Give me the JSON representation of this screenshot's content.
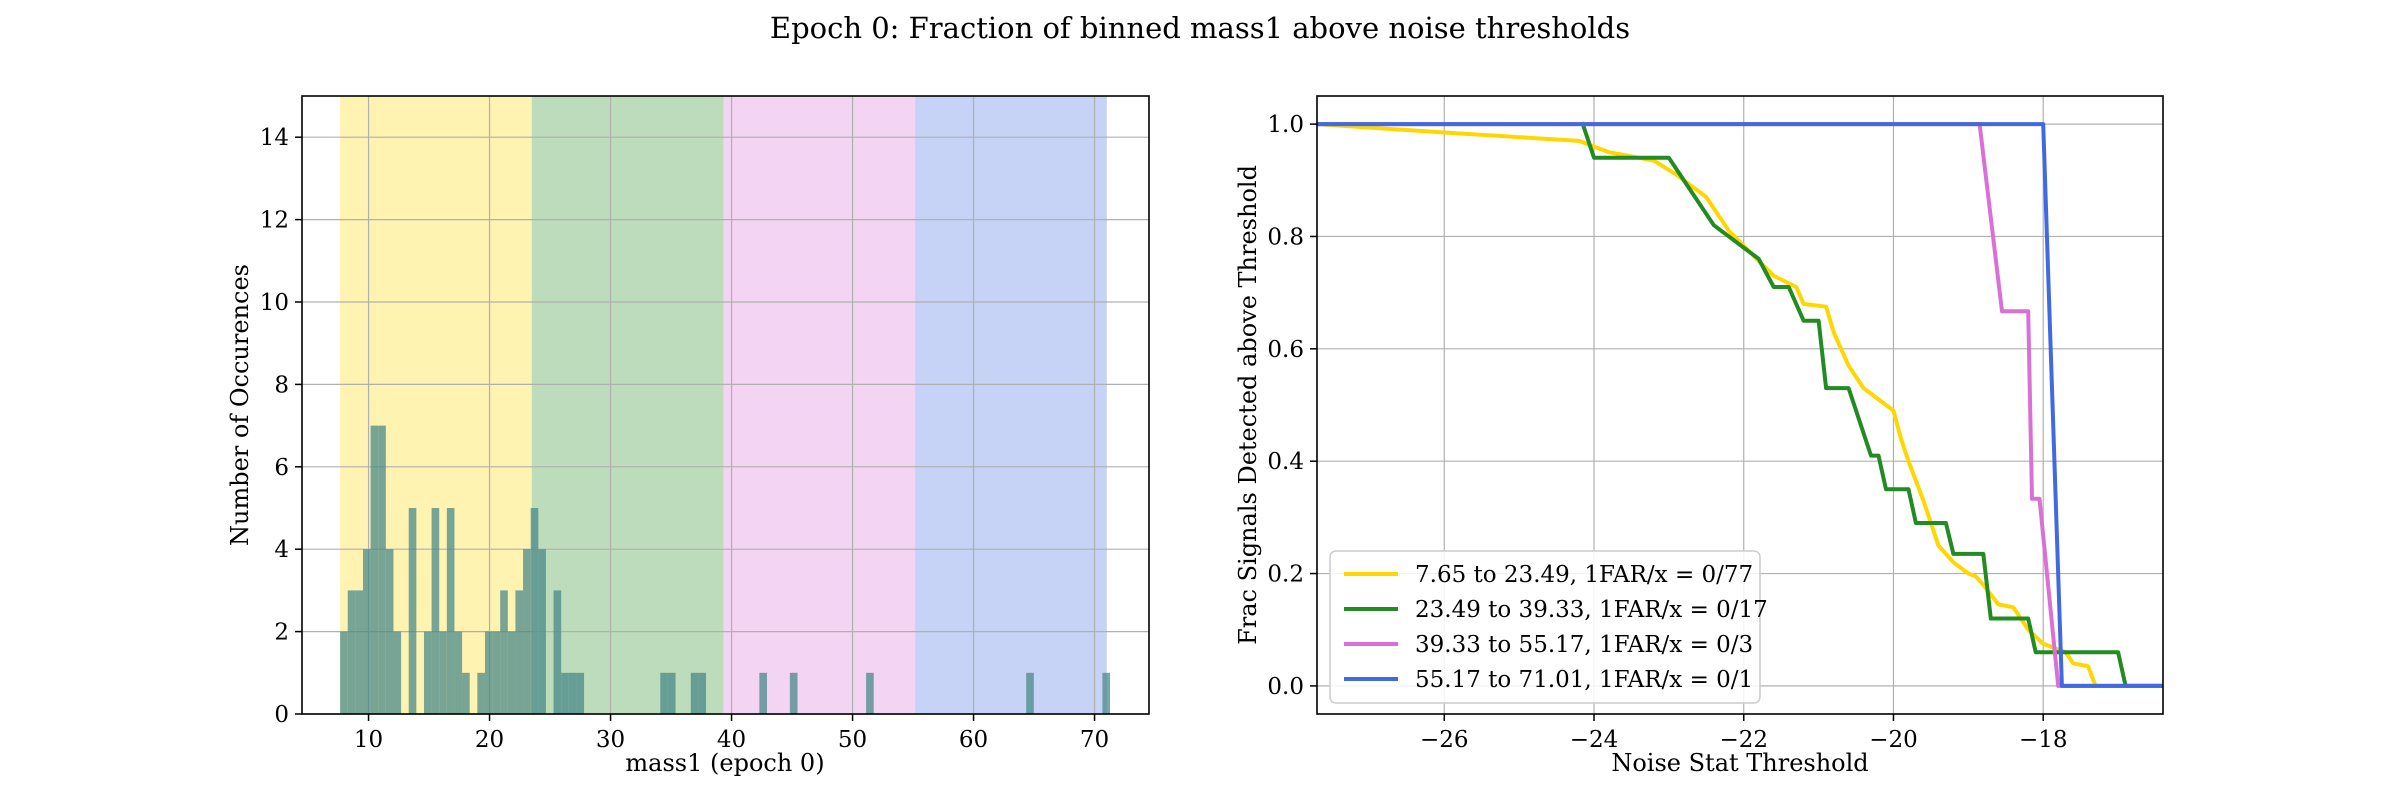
{
  "figure": {
    "suptitle": "Epoch 0: Fraction of binned mass1 above noise thresholds"
  },
  "colors": {
    "bin1": "#ffd700",
    "bin2": "#228b22",
    "bin3": "#da70d6",
    "bin4": "#4169e1",
    "bar": "#4a8a8a",
    "grid": "#b0b0b0"
  },
  "chart_data": [
    {
      "type": "bar",
      "title": "",
      "xlabel": "mass1 (epoch 0)",
      "ylabel": "Number of Occurences",
      "xlim": [
        4.5,
        74.5
      ],
      "ylim": [
        0,
        15
      ],
      "xticks": [
        10,
        20,
        30,
        40,
        50,
        60,
        70
      ],
      "yticks": [
        0,
        2,
        4,
        6,
        8,
        10,
        12,
        14
      ],
      "grid": true,
      "bin_width": 0.63,
      "shaded_bins": [
        {
          "x0": 7.65,
          "x1": 23.49,
          "color": "bin1"
        },
        {
          "x0": 23.49,
          "x1": 39.33,
          "color": "bin2"
        },
        {
          "x0": 39.33,
          "x1": 55.17,
          "color": "bin3"
        },
        {
          "x0": 55.17,
          "x1": 71.01,
          "color": "bin4"
        }
      ],
      "bars": [
        {
          "x": 7.65,
          "value": 2
        },
        {
          "x": 8.28,
          "value": 3
        },
        {
          "x": 8.91,
          "value": 3
        },
        {
          "x": 9.54,
          "value": 4
        },
        {
          "x": 10.17,
          "value": 7
        },
        {
          "x": 10.8,
          "value": 7
        },
        {
          "x": 11.43,
          "value": 4
        },
        {
          "x": 12.06,
          "value": 2
        },
        {
          "x": 13.32,
          "value": 5
        },
        {
          "x": 14.58,
          "value": 2
        },
        {
          "x": 15.21,
          "value": 5
        },
        {
          "x": 15.84,
          "value": 2
        },
        {
          "x": 16.47,
          "value": 5
        },
        {
          "x": 17.1,
          "value": 2
        },
        {
          "x": 17.73,
          "value": 1
        },
        {
          "x": 18.99,
          "value": 1
        },
        {
          "x": 19.62,
          "value": 2
        },
        {
          "x": 20.25,
          "value": 2
        },
        {
          "x": 20.88,
          "value": 3
        },
        {
          "x": 21.51,
          "value": 2
        },
        {
          "x": 22.14,
          "value": 3
        },
        {
          "x": 22.77,
          "value": 4
        },
        {
          "x": 23.4,
          "value": 5
        },
        {
          "x": 24.03,
          "value": 4
        },
        {
          "x": 25.29,
          "value": 3
        },
        {
          "x": 25.92,
          "value": 1
        },
        {
          "x": 26.55,
          "value": 1
        },
        {
          "x": 27.18,
          "value": 1
        },
        {
          "x": 34.11,
          "value": 1
        },
        {
          "x": 34.74,
          "value": 1
        },
        {
          "x": 36.63,
          "value": 1
        },
        {
          "x": 37.26,
          "value": 1
        },
        {
          "x": 42.3,
          "value": 1
        },
        {
          "x": 44.82,
          "value": 1
        },
        {
          "x": 51.12,
          "value": 1
        },
        {
          "x": 64.35,
          "value": 1
        },
        {
          "x": 70.65,
          "value": 1
        }
      ]
    },
    {
      "type": "line",
      "title": "",
      "xlabel": "Noise Stat Threshold",
      "ylabel": "Frac Signals Detected above Threshold",
      "xlim": [
        -27.7,
        -16.4
      ],
      "ylim": [
        -0.05,
        1.05
      ],
      "xticks": [
        -26,
        -24,
        -22,
        -20,
        -18
      ],
      "xticklabels": [
        "−26",
        "−24",
        "−22",
        "−20",
        "−18"
      ],
      "yticks": [
        0.0,
        0.2,
        0.4,
        0.6,
        0.8,
        1.0
      ],
      "yticklabels": [
        "0.0",
        "0.2",
        "0.4",
        "0.6",
        "0.8",
        "1.0"
      ],
      "grid": true,
      "legend_position": "lower-left",
      "series": [
        {
          "name": "7.65 to 23.49, 1FAR/x = 0/77",
          "color": "bin1",
          "points": [
            [
              -27.7,
              1.0
            ],
            [
              -26.0,
              0.985
            ],
            [
              -24.2,
              0.97
            ],
            [
              -23.8,
              0.95
            ],
            [
              -23.2,
              0.935
            ],
            [
              -22.9,
              0.91
            ],
            [
              -22.5,
              0.87
            ],
            [
              -22.2,
              0.81
            ],
            [
              -21.9,
              0.77
            ],
            [
              -21.6,
              0.73
            ],
            [
              -21.3,
              0.71
            ],
            [
              -21.2,
              0.68
            ],
            [
              -20.9,
              0.675
            ],
            [
              -20.8,
              0.63
            ],
            [
              -20.6,
              0.57
            ],
            [
              -20.4,
              0.53
            ],
            [
              -20.2,
              0.51
            ],
            [
              -20.0,
              0.49
            ],
            [
              -19.9,
              0.44
            ],
            [
              -19.8,
              0.4
            ],
            [
              -19.6,
              0.33
            ],
            [
              -19.5,
              0.29
            ],
            [
              -19.4,
              0.25
            ],
            [
              -19.2,
              0.22
            ],
            [
              -19.0,
              0.2
            ],
            [
              -18.9,
              0.195
            ],
            [
              -18.8,
              0.18
            ],
            [
              -18.6,
              0.145
            ],
            [
              -18.4,
              0.14
            ],
            [
              -18.2,
              0.1
            ],
            [
              -18.0,
              0.075
            ],
            [
              -17.7,
              0.06
            ],
            [
              -17.6,
              0.04
            ],
            [
              -17.4,
              0.035
            ],
            [
              -17.3,
              0.0
            ],
            [
              -16.4,
              0.0
            ]
          ]
        },
        {
          "name": "23.49 to 39.33, 1FAR/x = 0/17",
          "color": "bin2",
          "points": [
            [
              -24.15,
              1.0
            ],
            [
              -24.0,
              0.94
            ],
            [
              -23.0,
              0.94
            ],
            [
              -22.7,
              0.88
            ],
            [
              -22.4,
              0.82
            ],
            [
              -21.8,
              0.76
            ],
            [
              -21.6,
              0.71
            ],
            [
              -21.4,
              0.71
            ],
            [
              -21.2,
              0.65
            ],
            [
              -21.0,
              0.65
            ],
            [
              -20.9,
              0.53
            ],
            [
              -20.6,
              0.53
            ],
            [
              -20.3,
              0.41
            ],
            [
              -20.2,
              0.41
            ],
            [
              -20.1,
              0.35
            ],
            [
              -19.8,
              0.35
            ],
            [
              -19.7,
              0.29
            ],
            [
              -19.3,
              0.29
            ],
            [
              -19.2,
              0.235
            ],
            [
              -18.8,
              0.235
            ],
            [
              -18.7,
              0.12
            ],
            [
              -18.2,
              0.12
            ],
            [
              -18.1,
              0.06
            ],
            [
              -17.0,
              0.06
            ],
            [
              -16.9,
              0.0
            ],
            [
              -16.4,
              0.0
            ]
          ]
        },
        {
          "name": "39.33 to 55.17, 1FAR/x = 0/3",
          "color": "bin3",
          "points": [
            [
              -27.7,
              1.0
            ],
            [
              -18.85,
              1.0
            ],
            [
              -18.55,
              0.667
            ],
            [
              -18.2,
              0.667
            ],
            [
              -18.15,
              0.333
            ],
            [
              -18.05,
              0.333
            ],
            [
              -17.8,
              0.0
            ],
            [
              -16.4,
              0.0
            ]
          ]
        },
        {
          "name": "55.17 to 71.01, 1FAR/x = 0/1",
          "color": "bin4",
          "points": [
            [
              -27.7,
              1.0
            ],
            [
              -18.0,
              1.0
            ],
            [
              -17.75,
              0.0
            ],
            [
              -16.4,
              0.0
            ]
          ]
        }
      ]
    }
  ]
}
